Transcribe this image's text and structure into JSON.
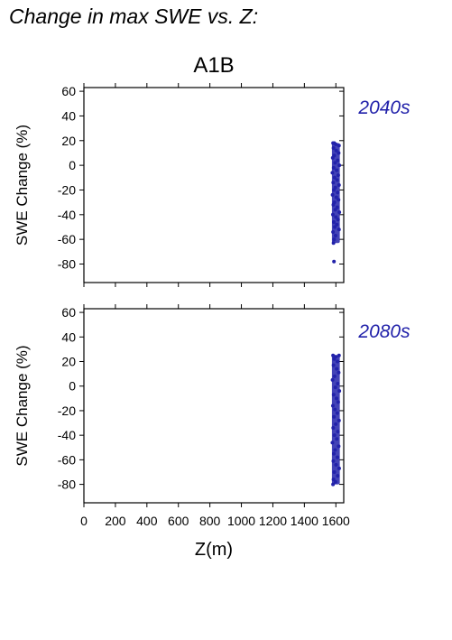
{
  "figure": {
    "title": "Change in max SWE vs. Z:",
    "scenario": "A1B",
    "xlabel": "Z(m)",
    "point_color": "#2222aa"
  },
  "chart_data": [
    {
      "type": "scatter",
      "panel_label": "2040s",
      "ylabel": "SWE Change (%)",
      "xlabel": "",
      "xlim": [
        0,
        1650
      ],
      "ylim": [
        -95,
        63
      ],
      "xticks": [
        0,
        200,
        400,
        600,
        800,
        1000,
        1200,
        1400,
        1600
      ],
      "yticks": [
        60,
        40,
        20,
        0,
        -20,
        -40,
        -60,
        -80
      ],
      "grid": false,
      "series": [
        {
          "x_range": [
            1575,
            1625
          ],
          "y_range": [
            -63,
            18
          ],
          "points": [
            {
              "x": 1582,
              "y": 18
            },
            {
              "x": 1590,
              "y": 18
            },
            {
              "x": 1600,
              "y": 17
            },
            {
              "x": 1620,
              "y": 16
            },
            {
              "x": 1585,
              "y": 14
            },
            {
              "x": 1602,
              "y": 12
            },
            {
              "x": 1618,
              "y": 10
            },
            {
              "x": 1590,
              "y": 8
            },
            {
              "x": 1580,
              "y": 6
            },
            {
              "x": 1612,
              "y": 4
            },
            {
              "x": 1595,
              "y": 2
            },
            {
              "x": 1622,
              "y": 0
            },
            {
              "x": 1586,
              "y": -2
            },
            {
              "x": 1605,
              "y": -4
            },
            {
              "x": 1578,
              "y": -6
            },
            {
              "x": 1615,
              "y": -8
            },
            {
              "x": 1592,
              "y": -10
            },
            {
              "x": 1608,
              "y": -12
            },
            {
              "x": 1583,
              "y": -14
            },
            {
              "x": 1620,
              "y": -16
            },
            {
              "x": 1597,
              "y": -18
            },
            {
              "x": 1588,
              "y": -20
            },
            {
              "x": 1611,
              "y": -22
            },
            {
              "x": 1579,
              "y": -24
            },
            {
              "x": 1603,
              "y": -26
            },
            {
              "x": 1617,
              "y": -28
            },
            {
              "x": 1591,
              "y": -30
            },
            {
              "x": 1584,
              "y": -32
            },
            {
              "x": 1609,
              "y": -34
            },
            {
              "x": 1596,
              "y": -36
            },
            {
              "x": 1622,
              "y": -38
            },
            {
              "x": 1581,
              "y": -40
            },
            {
              "x": 1600,
              "y": -42
            },
            {
              "x": 1614,
              "y": -44
            },
            {
              "x": 1587,
              "y": -46
            },
            {
              "x": 1606,
              "y": -48
            },
            {
              "x": 1593,
              "y": -50
            },
            {
              "x": 1620,
              "y": -52
            },
            {
              "x": 1582,
              "y": -54
            },
            {
              "x": 1598,
              "y": -57
            },
            {
              "x": 1589,
              "y": -60
            },
            {
              "x": 1585,
              "y": -63
            }
          ]
        }
      ],
      "outliers": [
        {
          "x": 1588,
          "y": -78
        }
      ]
    },
    {
      "type": "scatter",
      "panel_label": "2080s",
      "ylabel": "SWE Change (%)",
      "xlabel": "Z(m)",
      "xlim": [
        0,
        1650
      ],
      "ylim": [
        -95,
        63
      ],
      "xticks": [
        0,
        200,
        400,
        600,
        800,
        1000,
        1200,
        1400,
        1600
      ],
      "xtick_labels": [
        "0",
        "200",
        "400",
        "600",
        "800",
        "1000",
        "1200",
        "1400",
        "1600"
      ],
      "yticks": [
        60,
        40,
        20,
        0,
        -20,
        -40,
        -60,
        -80
      ],
      "grid": false,
      "series": [
        {
          "x_range": [
            1575,
            1625
          ],
          "y_range": [
            -80,
            25
          ],
          "points": [
            {
              "x": 1582,
              "y": 25
            },
            {
              "x": 1600,
              "y": 24
            },
            {
              "x": 1620,
              "y": 25
            },
            {
              "x": 1590,
              "y": 22
            },
            {
              "x": 1610,
              "y": 20
            },
            {
              "x": 1585,
              "y": 17
            },
            {
              "x": 1605,
              "y": 14
            },
            {
              "x": 1618,
              "y": 11
            },
            {
              "x": 1592,
              "y": 8
            },
            {
              "x": 1579,
              "y": 5
            },
            {
              "x": 1612,
              "y": 2
            },
            {
              "x": 1597,
              "y": -1
            },
            {
              "x": 1622,
              "y": -4
            },
            {
              "x": 1586,
              "y": -7
            },
            {
              "x": 1604,
              "y": -10
            },
            {
              "x": 1615,
              "y": -13
            },
            {
              "x": 1581,
              "y": -16
            },
            {
              "x": 1594,
              "y": -19
            },
            {
              "x": 1609,
              "y": -22
            },
            {
              "x": 1588,
              "y": -25
            },
            {
              "x": 1620,
              "y": -28
            },
            {
              "x": 1599,
              "y": -31
            },
            {
              "x": 1583,
              "y": -34
            },
            {
              "x": 1613,
              "y": -37
            },
            {
              "x": 1591,
              "y": -40
            },
            {
              "x": 1606,
              "y": -43
            },
            {
              "x": 1578,
              "y": -46
            },
            {
              "x": 1618,
              "y": -49
            },
            {
              "x": 1595,
              "y": -52
            },
            {
              "x": 1587,
              "y": -55
            },
            {
              "x": 1610,
              "y": -58
            },
            {
              "x": 1584,
              "y": -61
            },
            {
              "x": 1601,
              "y": -64
            },
            {
              "x": 1621,
              "y": -67
            },
            {
              "x": 1590,
              "y": -70
            },
            {
              "x": 1612,
              "y": -73
            },
            {
              "x": 1585,
              "y": -76
            },
            {
              "x": 1598,
              "y": -78
            },
            {
              "x": 1582,
              "y": -80
            }
          ]
        }
      ]
    }
  ]
}
